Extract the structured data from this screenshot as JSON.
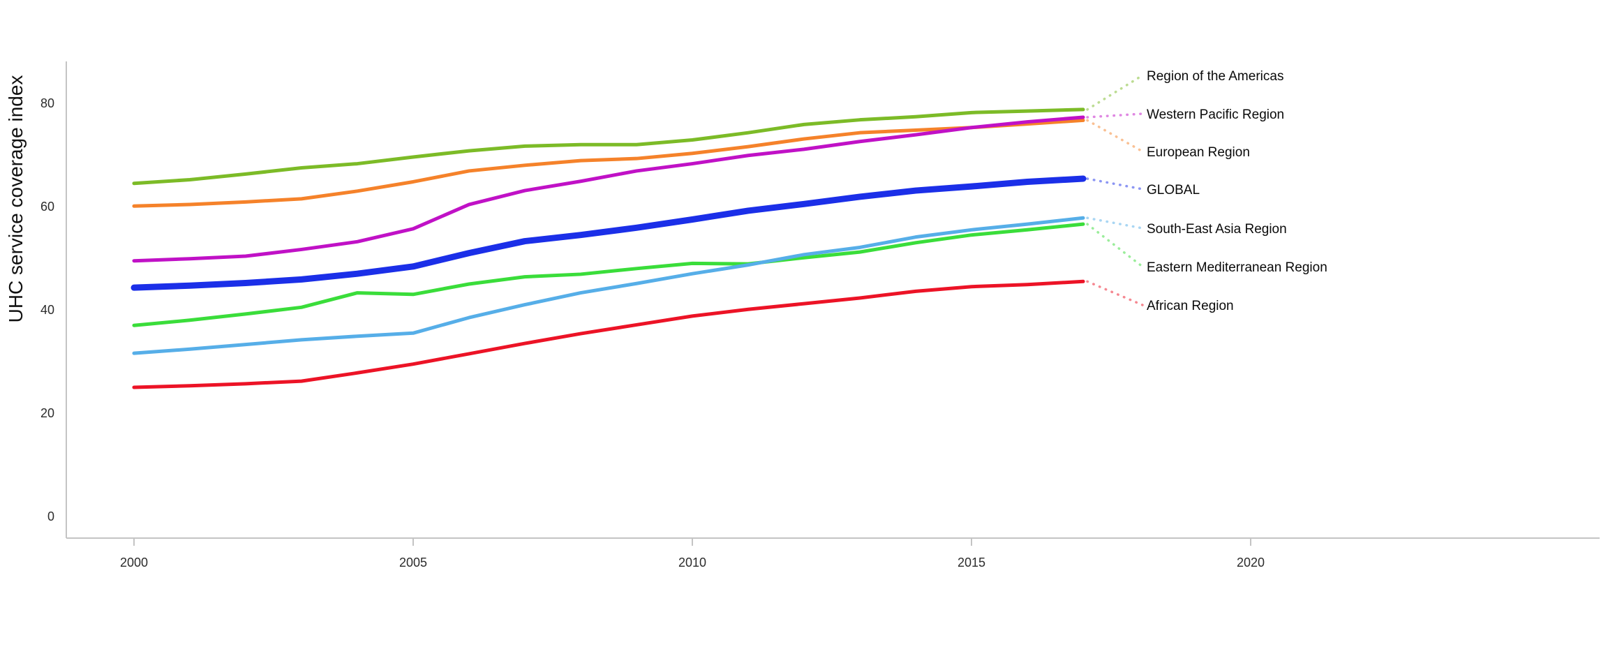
{
  "chart_data": {
    "type": "line",
    "title": "",
    "xlabel": "",
    "ylabel": "UHC service coverage index",
    "x": [
      2000,
      2001,
      2002,
      2003,
      2004,
      2005,
      2006,
      2007,
      2008,
      2009,
      2010,
      2011,
      2012,
      2013,
      2014,
      2015,
      2016,
      2017
    ],
    "x_ticks": [
      2000,
      2005,
      2010,
      2015,
      2020
    ],
    "y_ticks": [
      0,
      20,
      40,
      60,
      80
    ],
    "xlim": [
      1998.8,
      2026.25
    ],
    "ylim": [
      -4.2,
      87.2
    ],
    "grid": false,
    "legend_position": "right edge labels with dotted leader lines",
    "axis_color": "#c4c4c4",
    "tick_label_color": "#2b2b2b",
    "series": [
      {
        "name": "Region of the Americas",
        "color": "#7cbb27",
        "line_width": 5,
        "values": [
          64.5,
          65.2,
          66.3,
          67.5,
          68.3,
          69.6,
          70.8,
          71.7,
          72.0,
          72.0,
          72.9,
          74.3,
          75.9,
          76.8,
          77.4,
          78.2,
          78.5,
          78.8
        ]
      },
      {
        "name": "Western Pacific Region",
        "color": "#c011c6",
        "line_width": 5,
        "values": [
          49.5,
          49.9,
          50.4,
          51.7,
          53.2,
          55.7,
          60.4,
          63.1,
          64.9,
          66.9,
          68.3,
          69.9,
          71.1,
          72.6,
          73.9,
          75.3,
          76.4,
          77.3
        ]
      },
      {
        "name": "European Region",
        "color": "#f5822a",
        "line_width": 5,
        "values": [
          60.1,
          60.4,
          60.9,
          61.5,
          63.0,
          64.8,
          66.9,
          68.0,
          68.9,
          69.3,
          70.3,
          71.6,
          73.1,
          74.3,
          74.8,
          75.3,
          76.0,
          76.7
        ]
      },
      {
        "name": "GLOBAL",
        "color": "#1b2fe8",
        "line_width": 9,
        "values": [
          44.3,
          44.7,
          45.2,
          45.9,
          47.0,
          48.4,
          51.0,
          53.3,
          54.5,
          55.9,
          57.5,
          59.2,
          60.5,
          61.9,
          63.1,
          63.9,
          64.8,
          65.4
        ]
      },
      {
        "name": "South-East Asia Region",
        "color": "#56aee8",
        "line_width": 5,
        "values": [
          31.6,
          32.4,
          33.3,
          34.2,
          34.9,
          35.5,
          38.5,
          41.0,
          43.3,
          45.1,
          47.0,
          48.7,
          50.7,
          52.1,
          54.1,
          55.5,
          56.6,
          57.8
        ]
      },
      {
        "name": "Eastern Mediterranean Region",
        "color": "#3add3a",
        "line_width": 5,
        "values": [
          37.0,
          38.0,
          39.2,
          40.5,
          43.3,
          43.0,
          45.0,
          46.4,
          46.9,
          48.0,
          49.0,
          48.9,
          50.1,
          51.2,
          53.0,
          54.5,
          55.5,
          56.6
        ]
      },
      {
        "name": "African Region",
        "color": "#ec1326",
        "line_width": 5,
        "values": [
          25.0,
          25.3,
          25.7,
          26.2,
          27.8,
          29.5,
          31.5,
          33.5,
          35.4,
          37.1,
          38.8,
          40.1,
          41.2,
          42.3,
          43.6,
          44.5,
          44.9,
          45.5
        ]
      }
    ]
  }
}
